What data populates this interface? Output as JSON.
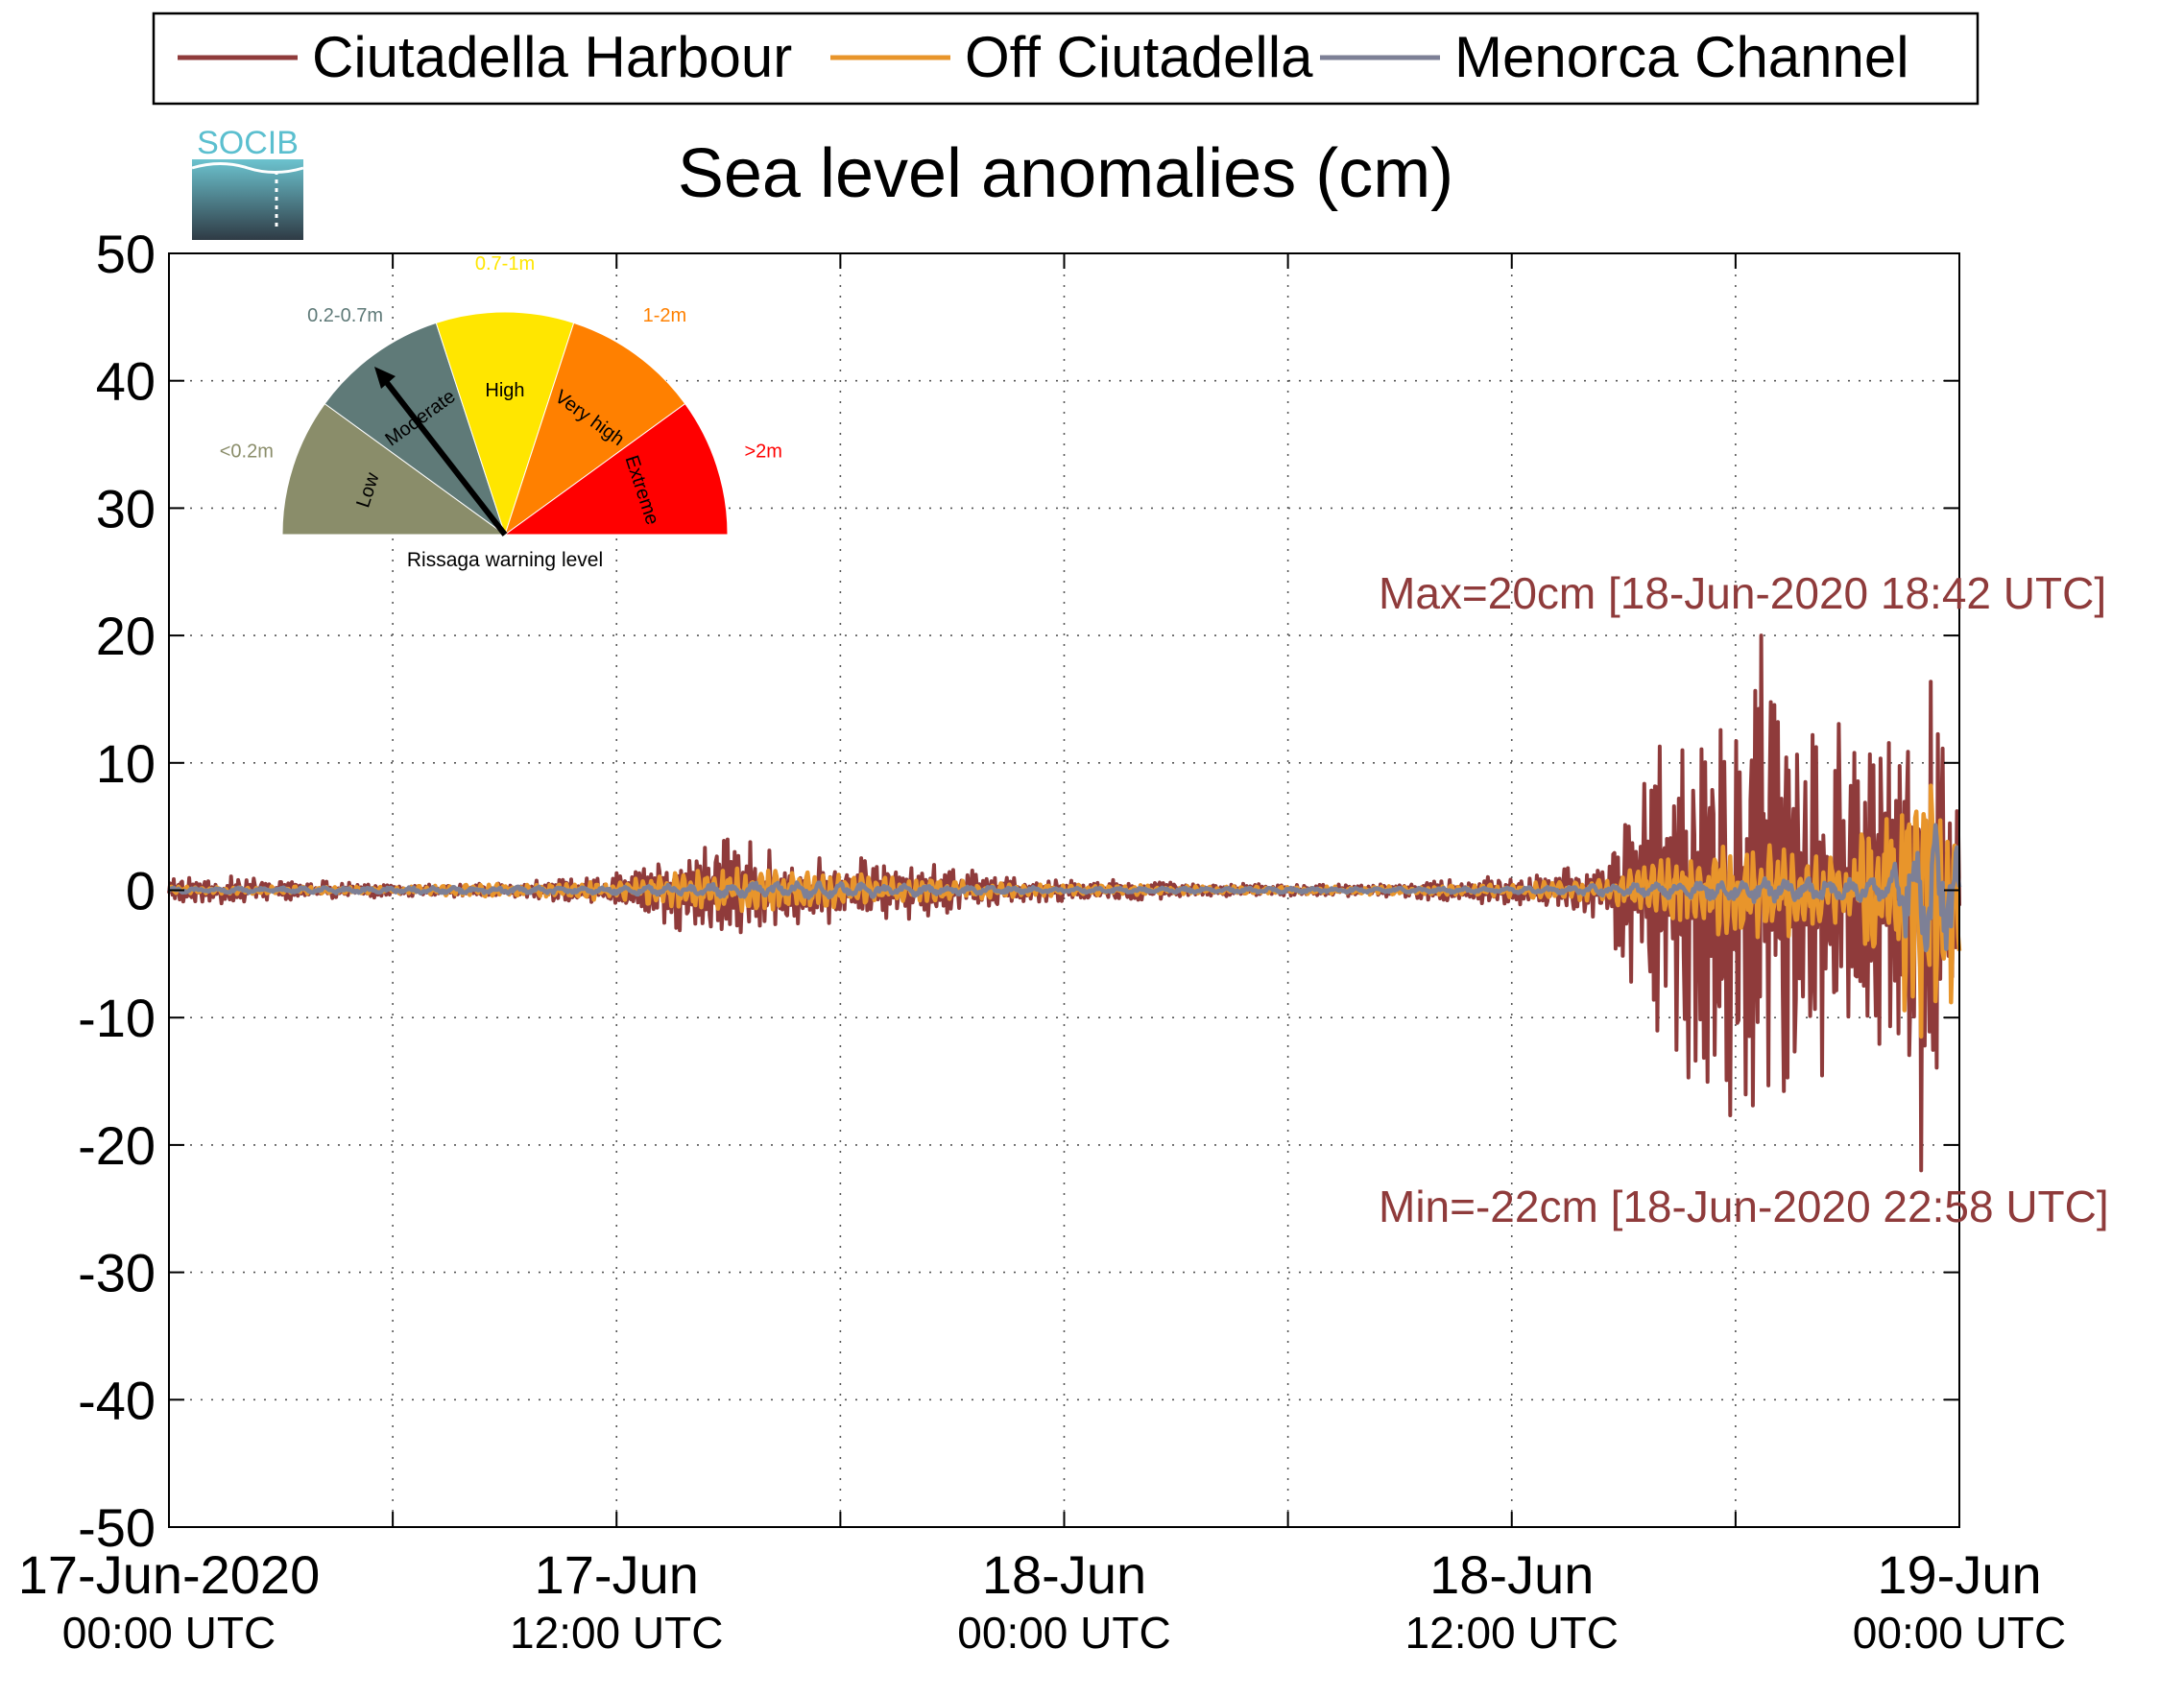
{
  "chart_data": {
    "type": "line",
    "title": "Sea level anomalies (cm)",
    "xlabel": "",
    "ylabel": "",
    "ylim": [
      -50,
      50
    ],
    "y_ticks": [
      "50",
      "40",
      "30",
      "20",
      "10",
      "0",
      "-10",
      "-20",
      "-30",
      "-40",
      "-50"
    ],
    "xlim": [
      "2020-06-17T00:00",
      "2020-06-19T00:00"
    ],
    "x_ticks": [
      {
        "line1": "17-Jun-2020",
        "line2": "00:00 UTC"
      },
      {
        "line1": "17-Jun",
        "line2": "12:00 UTC"
      },
      {
        "line1": "18-Jun",
        "line2": "00:00 UTC"
      },
      {
        "line1": "18-Jun",
        "line2": "12:00 UTC"
      },
      {
        "line1": "19-Jun",
        "line2": "00:00 UTC"
      }
    ],
    "grid": true,
    "legend_position": "top",
    "series": [
      {
        "name": "Ciutadella Harbour",
        "color": "#8f3b3b",
        "x": [
          "2020-06-17T00:00",
          "2020-06-17T03:00",
          "2020-06-17T06:00",
          "2020-06-17T09:00",
          "2020-06-17T12:00",
          "2020-06-17T13:30",
          "2020-06-17T15:00",
          "2020-06-17T17:00",
          "2020-06-17T19:00",
          "2020-06-17T21:00",
          "2020-06-17T23:00",
          "2020-06-18T02:00",
          "2020-06-18T05:00",
          "2020-06-18T08:00",
          "2020-06-18T11:00",
          "2020-06-18T13:00",
          "2020-06-18T14:30",
          "2020-06-18T16:00",
          "2020-06-18T17:00",
          "2020-06-18T18:00",
          "2020-06-18T18:42",
          "2020-06-18T19:30",
          "2020-06-18T20:30",
          "2020-06-18T21:30",
          "2020-06-18T22:30",
          "2020-06-18T22:58",
          "2020-06-18T23:30",
          "2020-06-19T00:00"
        ],
        "amplitude": [
          1.2,
          1.0,
          0.5,
          0.6,
          1.5,
          3.0,
          4.5,
          3.0,
          2.5,
          2.0,
          1.0,
          0.8,
          0.5,
          0.5,
          1.0,
          1.5,
          2.5,
          14,
          16,
          18,
          20,
          16,
          15,
          13,
          14,
          22,
          14,
          12
        ],
        "max": {
          "value": 20,
          "time": "2020-06-18T18:42"
        },
        "min": {
          "value": -22,
          "time": "2020-06-18T22:58"
        }
      },
      {
        "name": "Off Ciutadella",
        "color": "#e8952b",
        "x": [
          "2020-06-17T00:00",
          "2020-06-17T06:00",
          "2020-06-17T12:00",
          "2020-06-17T15:00",
          "2020-06-17T19:00",
          "2020-06-17T23:00",
          "2020-06-18T05:00",
          "2020-06-18T11:00",
          "2020-06-18T14:30",
          "2020-06-18T17:00",
          "2020-06-18T19:00",
          "2020-06-18T21:00",
          "2020-06-18T22:58",
          "2020-06-19T00:00"
        ],
        "amplitude": [
          0.3,
          0.3,
          0.8,
          2.0,
          1.2,
          0.5,
          0.3,
          0.4,
          1.0,
          3.5,
          4.0,
          3.0,
          13,
          9
        ]
      },
      {
        "name": "Menorca Channel",
        "color": "#7d8096",
        "x": [
          "2020-06-17T00:00",
          "2020-06-17T12:00",
          "2020-06-17T16:00",
          "2020-06-18T00:00",
          "2020-06-18T12:00",
          "2020-06-18T16:00",
          "2020-06-18T19:00",
          "2020-06-18T22:00",
          "2020-06-18T22:58",
          "2020-06-19T00:00"
        ],
        "amplitude": [
          0.2,
          0.3,
          0.7,
          0.2,
          0.2,
          0.6,
          1.0,
          1.0,
          6,
          4
        ]
      }
    ],
    "annotations": [
      {
        "text": "Max=20cm [18-Jun-2020 18:42 UTC]",
        "color": "#8f3b3b"
      },
      {
        "text": "Min=-22cm [18-Jun-2020 22:58 UTC]",
        "color": "#8f3b3b"
      }
    ]
  },
  "logo": {
    "text": "SOCIB"
  },
  "gauge": {
    "caption": "Rissaga warning level",
    "needle_level": "Moderate",
    "sectors": [
      {
        "label": "Low",
        "range": "<0.2m",
        "color": "#8a8d6a"
      },
      {
        "label": "Moderate",
        "range": "0.2-0.7m",
        "color": "#5f7a78"
      },
      {
        "label": "High",
        "range": "0.7-1m",
        "color": "#ffe600"
      },
      {
        "label": "Very high",
        "range": "1-2m",
        "color": "#ff8000"
      },
      {
        "label": "Extreme",
        "range": ">2m",
        "color": "#ff0000"
      }
    ]
  }
}
